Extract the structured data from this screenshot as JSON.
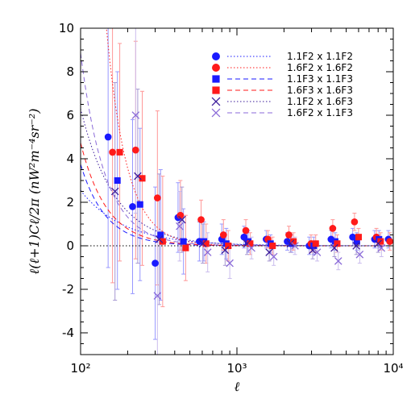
{
  "chart_data": {
    "type": "scatter",
    "xscale": "log",
    "xlim": [
      100,
      10000
    ],
    "ylim": [
      -5,
      10
    ],
    "xlabel": "ℓ",
    "ylabel": "ℓ(ℓ+1)Cℓ/2π   (nW²m⁻⁴sr⁻²)",
    "x_ticks": [
      {
        "value": 100,
        "label": "10²"
      },
      {
        "value": 1000,
        "label": "10³"
      },
      {
        "value": 10000,
        "label": "10⁴"
      }
    ],
    "y_ticks": [
      -4,
      -2,
      0,
      2,
      4,
      6,
      8,
      10
    ],
    "zero_line": true,
    "legend_position": "top-right",
    "series": [
      {
        "name": "1.1F2 x 1.1F2",
        "color": "#1a1aff",
        "marker": "circle",
        "line_style": "dotted",
        "x": [
          150,
          215,
          300,
          420,
          575,
          800,
          1110,
          1540,
          2100,
          2900,
          4000,
          5500,
          7600,
          9300
        ],
        "y": [
          5.0,
          1.8,
          -0.8,
          1.3,
          0.2,
          0.3,
          0.4,
          0.3,
          0.2,
          0.0,
          0.3,
          0.4,
          0.3,
          0.3
        ],
        "err": [
          6.0,
          4.0,
          3.5,
          1.6,
          0.9,
          0.7,
          0.5,
          0.4,
          0.4,
          0.4,
          0.4,
          0.4,
          0.4,
          0.4
        ],
        "model": {
          "A": 3200,
          "k": 1.55
        }
      },
      {
        "name": "1.6F2 x 1.6F2",
        "color": "#ff1a1a",
        "marker": "circle",
        "line_style": "dotted",
        "x": [
          160,
          225,
          310,
          435,
          590,
          820,
          1140,
          1580,
          2150,
          2980,
          4100,
          5650,
          7800,
          9500
        ],
        "y": [
          4.3,
          4.4,
          2.2,
          1.4,
          1.2,
          0.5,
          0.7,
          0.3,
          0.5,
          0.1,
          0.8,
          1.1,
          0.4,
          0.2
        ],
        "err": [
          6.0,
          5.0,
          4.0,
          1.6,
          0.9,
          0.7,
          0.5,
          0.4,
          0.4,
          0.4,
          0.4,
          0.4,
          0.4,
          0.4
        ],
        "model": {
          "A": 140000000.0,
          "k": 3.3
        }
      },
      {
        "name": "1.1F3 x 1.1F3",
        "color": "#1a1aff",
        "marker": "square",
        "line_style": "dashed",
        "x": [
          172,
          240,
          325,
          455,
          615,
          855,
          1180,
          1640,
          2240,
          3100,
          4250,
          5850,
          8100
        ],
        "y": [
          3.0,
          1.9,
          0.5,
          0.2,
          0.2,
          0.1,
          0.2,
          0.1,
          0.1,
          0.0,
          0.2,
          0.2,
          0.3
        ],
        "err": [
          5.0,
          3.5,
          3.0,
          1.5,
          0.9,
          0.7,
          0.5,
          0.4,
          0.4,
          0.4,
          0.4,
          0.4,
          0.4
        ],
        "model": {
          "A": 940000.0,
          "k": 2.7
        }
      },
      {
        "name": "1.6F3 x 1.6F3",
        "color": "#ff1a1a",
        "marker": "square",
        "line_style": "dashed",
        "x": [
          178,
          248,
          335,
          470,
          635,
          880,
          1215,
          1690,
          2300,
          3190,
          4380,
          6000,
          8300
        ],
        "y": [
          4.3,
          3.1,
          0.2,
          -0.1,
          0.1,
          0.0,
          0.1,
          0.0,
          0.2,
          0.1,
          0.1,
          0.4,
          0.2
        ],
        "err": [
          5.0,
          4.0,
          3.0,
          1.5,
          0.9,
          0.7,
          0.5,
          0.4,
          0.4,
          0.4,
          0.4,
          0.4,
          0.4
        ],
        "model": {
          "A": 750000.0,
          "k": 2.6
        }
      },
      {
        "name": "1.1F2 x 1.6F3",
        "color": "#3a1a9a",
        "marker": "x",
        "line_style": "dotted",
        "x": [
          166,
          232,
          318,
          445,
          605,
          840,
          1160,
          1610,
          2200,
          3050,
          4200,
          5800,
          8000
        ],
        "y": [
          2.5,
          3.2,
          0.3,
          1.2,
          0.1,
          -0.2,
          0.1,
          -0.3,
          0.1,
          -0.2,
          -0.1,
          0.0,
          0.1
        ],
        "err": [
          5.0,
          4.0,
          3.0,
          1.5,
          0.9,
          0.7,
          0.5,
          0.4,
          0.4,
          0.4,
          0.4,
          0.4,
          0.4
        ],
        "model": {
          "A": 63000.0,
          "k": 2.0
        }
      },
      {
        "name": "1.6F2 x 1.1F3",
        "color": "#8a6ad8",
        "marker": "x",
        "line_style": "dashed",
        "x": [
          225,
          310,
          430,
          650,
          900,
          1240,
          1720,
          2350,
          3260,
          4450,
          6100,
          8400
        ],
        "y": [
          6.0,
          -2.3,
          0.9,
          -0.3,
          -0.8,
          -0.1,
          -0.5,
          0.0,
          -0.3,
          -0.7,
          -0.4,
          -0.1
        ],
        "err": [
          4.5,
          3.0,
          1.6,
          0.9,
          0.7,
          0.5,
          0.4,
          0.4,
          0.4,
          0.4,
          0.4,
          0.4
        ],
        "model": {
          "A": 2800000.0,
          "k": 2.75
        }
      }
    ]
  }
}
